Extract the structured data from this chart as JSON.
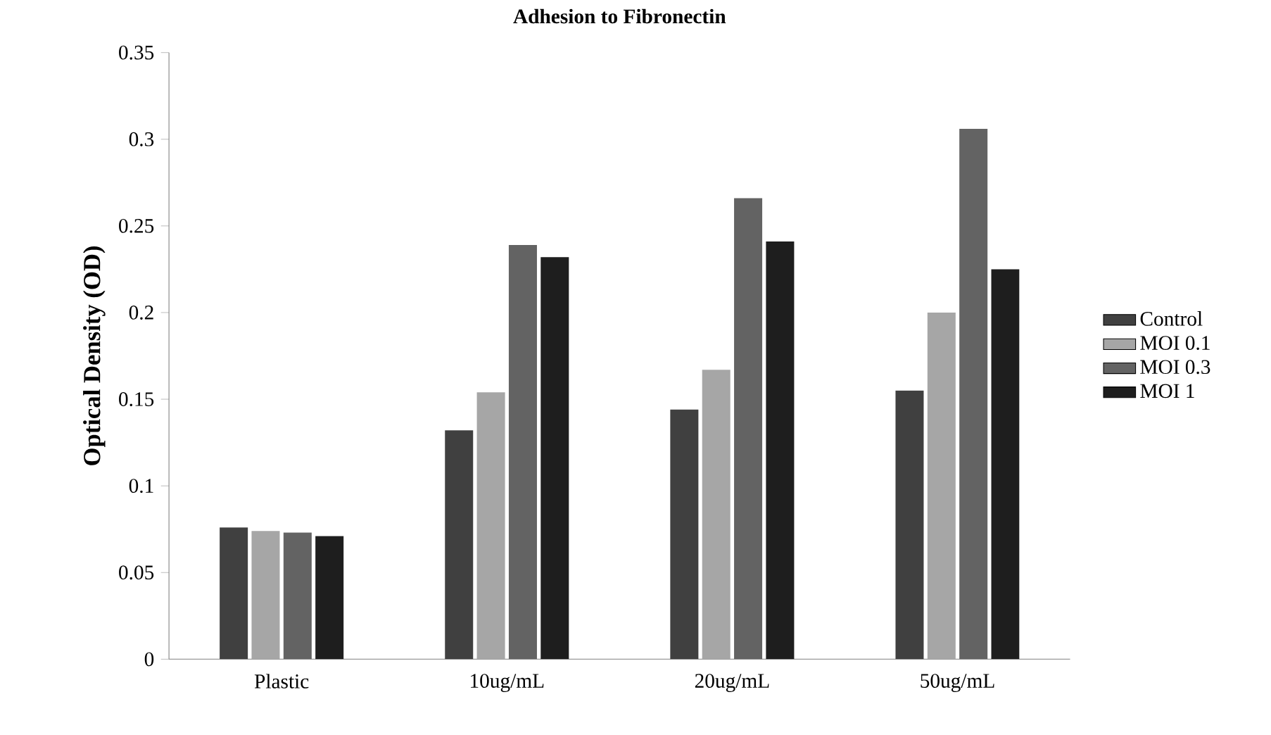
{
  "chart_data": {
    "type": "bar",
    "title": "Adhesion to Fibronectin",
    "ylabel": "Optical Density (OD)",
    "categories": [
      "Plastic",
      "10ug/mL",
      "20ug/mL",
      "50ug/mL"
    ],
    "series": [
      {
        "name": "Control",
        "color": "#404040",
        "values": [
          0.076,
          0.132,
          0.144,
          0.155
        ]
      },
      {
        "name": "MOI 0.1",
        "color": "#a6a6a6",
        "values": [
          0.074,
          0.154,
          0.167,
          0.2
        ]
      },
      {
        "name": "MOI 0.3",
        "color": "#636363",
        "values": [
          0.073,
          0.239,
          0.266,
          0.306
        ]
      },
      {
        "name": "MOI 1",
        "color": "#1e1e1e",
        "values": [
          0.071,
          0.232,
          0.241,
          0.225
        ]
      }
    ],
    "ylim": [
      0,
      0.35
    ],
    "yticks": [
      0,
      0.05,
      0.1,
      0.15,
      0.2,
      0.25,
      0.3,
      0.35
    ],
    "grid": false,
    "legend": "right"
  }
}
